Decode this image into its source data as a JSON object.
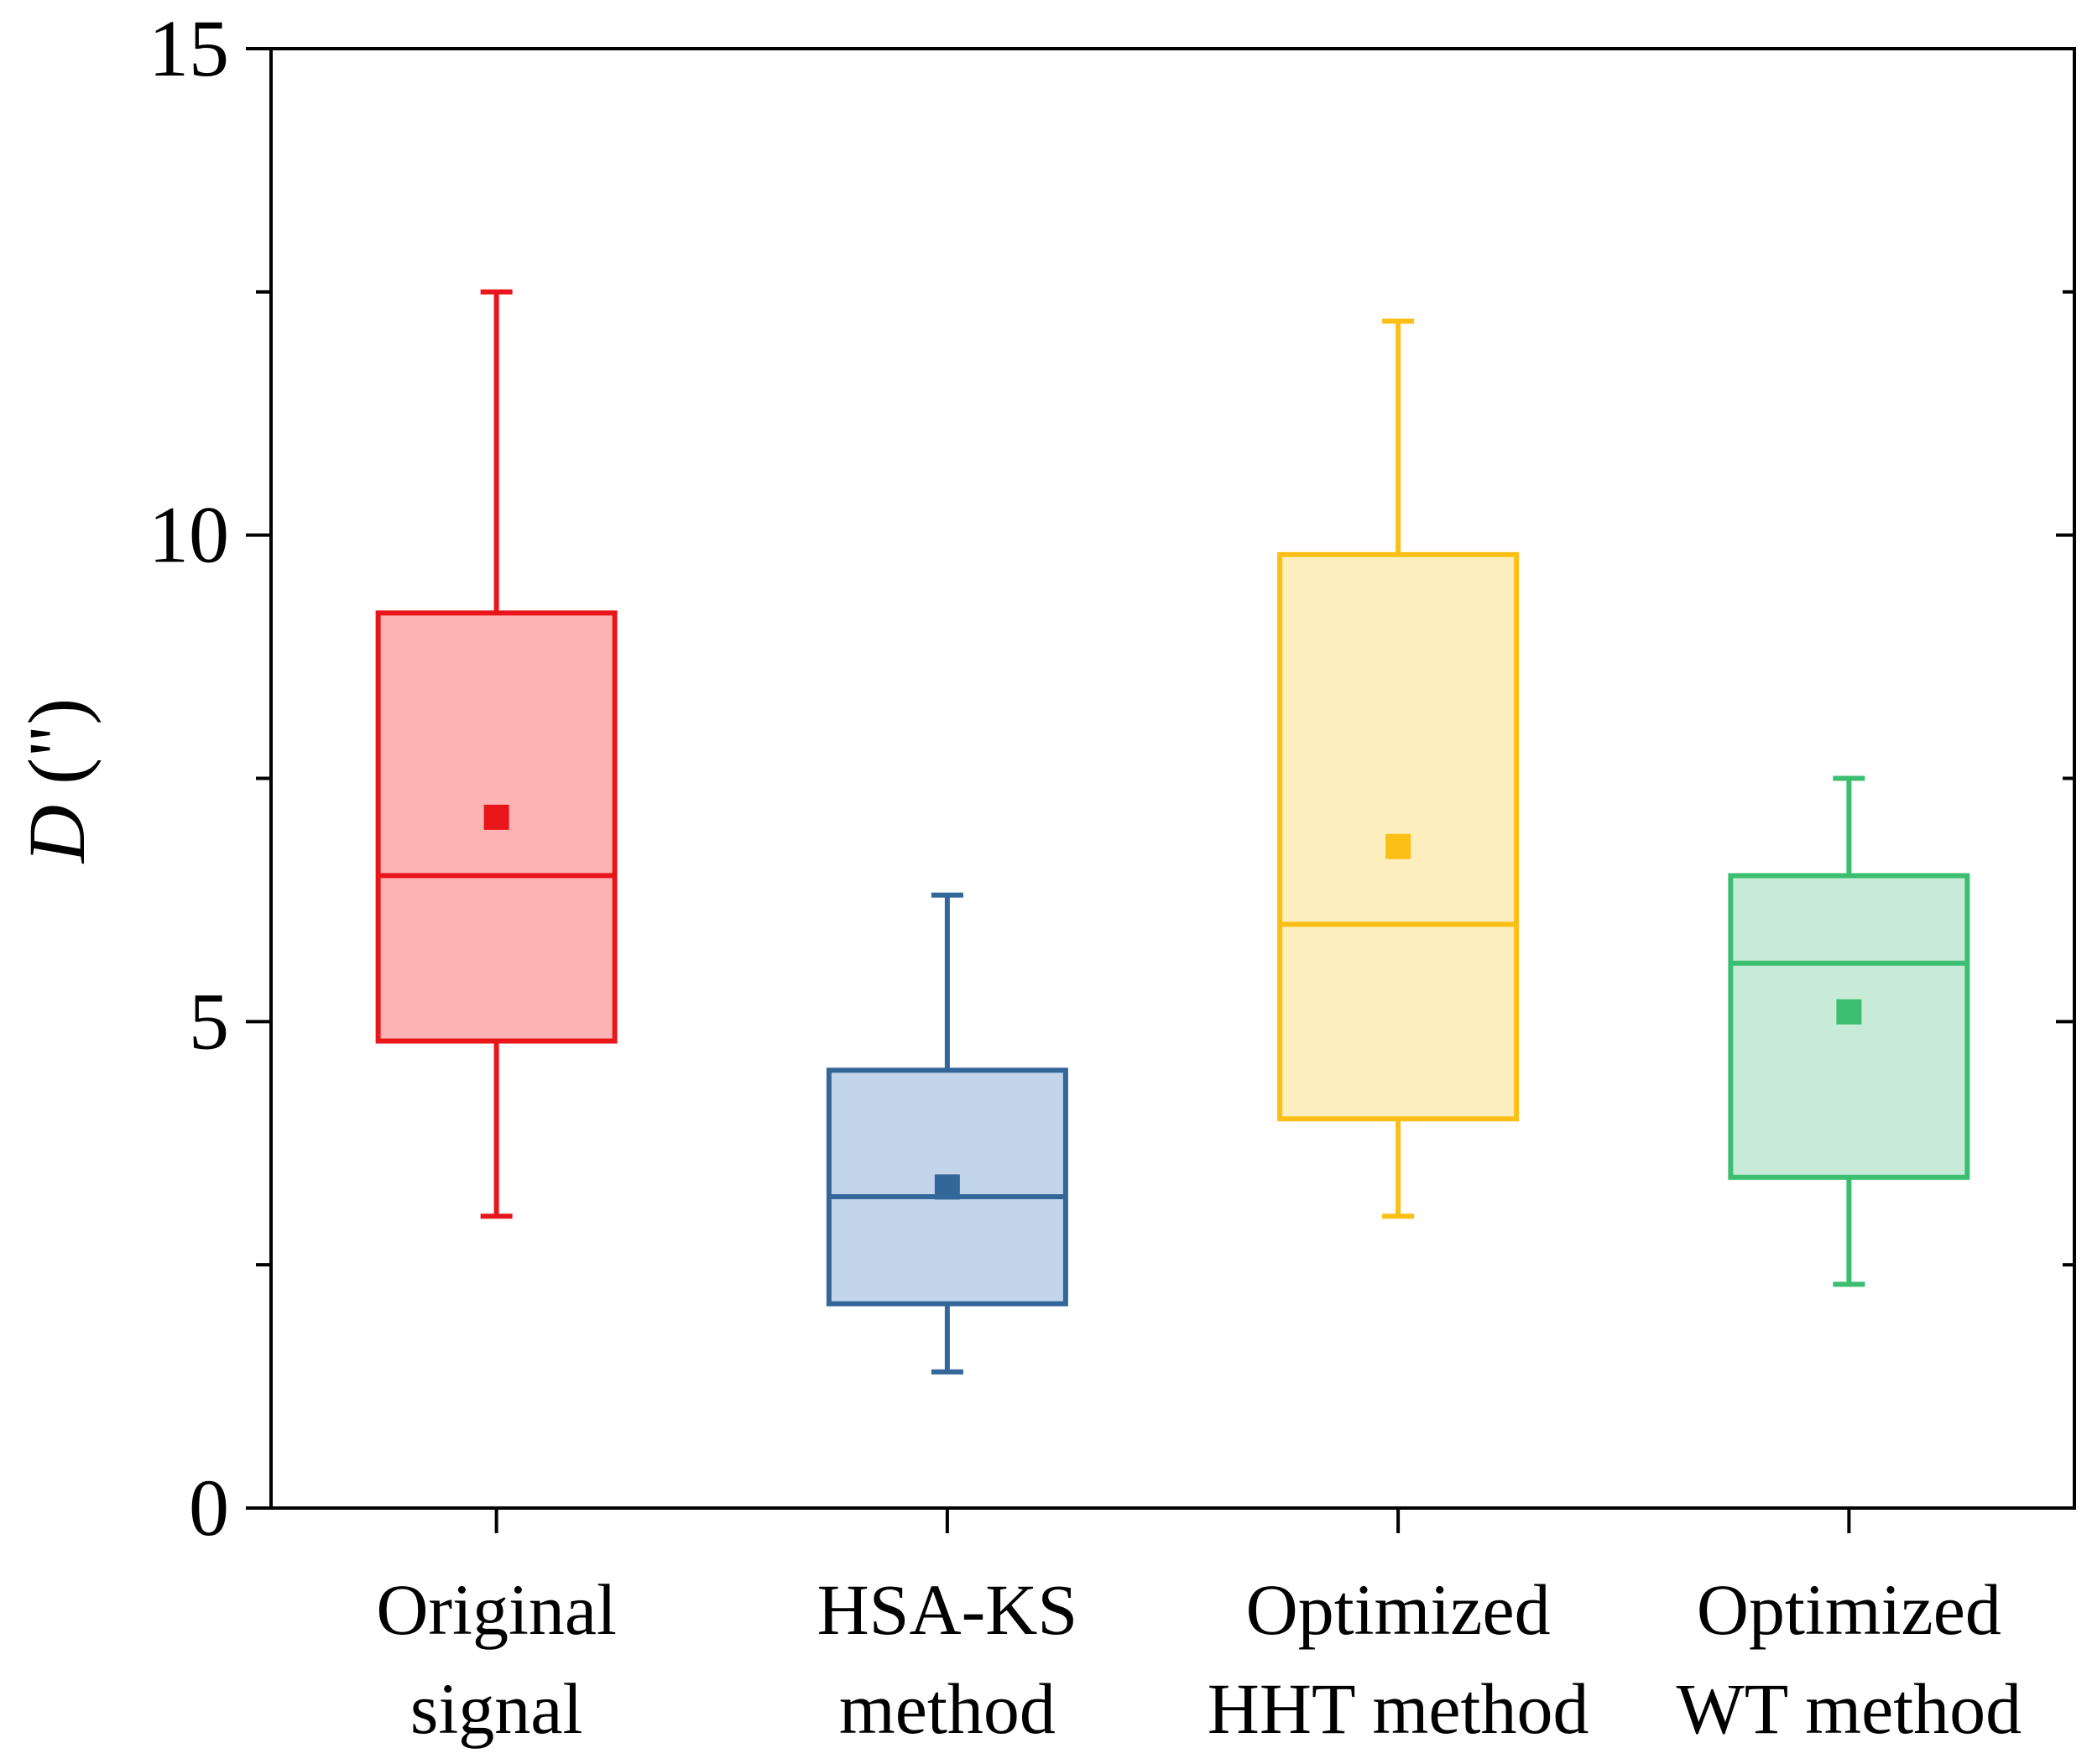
{
  "chart_data": {
    "type": "box",
    "title": "",
    "xlabel": "",
    "ylabel": {
      "symbol": "D",
      "unit": "(\")"
    },
    "ylim": [
      0,
      15
    ],
    "yticks": [
      0,
      5,
      10,
      15
    ],
    "yticklabels": [
      "0",
      "5",
      "10",
      "15"
    ],
    "y_minor_ticks": [
      2.5,
      7.5,
      12.5
    ],
    "categories": [
      {
        "lines": [
          "Original",
          "signal"
        ]
      },
      {
        "lines": [
          "HSA-KS",
          "method"
        ]
      },
      {
        "lines": [
          "Optimized",
          "HHT method"
        ]
      },
      {
        "lines": [
          "Optimized",
          "WT method"
        ]
      }
    ],
    "series": [
      {
        "name": "Original signal",
        "whisker_low": 3.0,
        "q1": 4.8,
        "median": 6.5,
        "q3": 9.2,
        "whisker_high": 12.5,
        "mean": 7.1,
        "color": "#e8161b",
        "fill": "#fdb3b3"
      },
      {
        "name": "HSA-KS method",
        "whisker_low": 1.4,
        "q1": 2.1,
        "median": 3.2,
        "q3": 4.5,
        "whisker_high": 6.3,
        "mean": 3.3,
        "color": "#336699",
        "fill": "#c3d5ea"
      },
      {
        "name": "Optimized HHT method",
        "whisker_low": 3.0,
        "q1": 4.0,
        "median": 6.0,
        "q3": 9.8,
        "whisker_high": 12.2,
        "mean": 6.8,
        "color": "#fbbf16",
        "fill": "#fdeebd"
      },
      {
        "name": "Optimized WT method",
        "whisker_low": 2.3,
        "q1": 3.4,
        "median": 5.6,
        "q3": 6.5,
        "whisker_high": 7.5,
        "mean": 5.1,
        "color": "#3cbe70",
        "fill": "#c7ebd6"
      }
    ]
  }
}
